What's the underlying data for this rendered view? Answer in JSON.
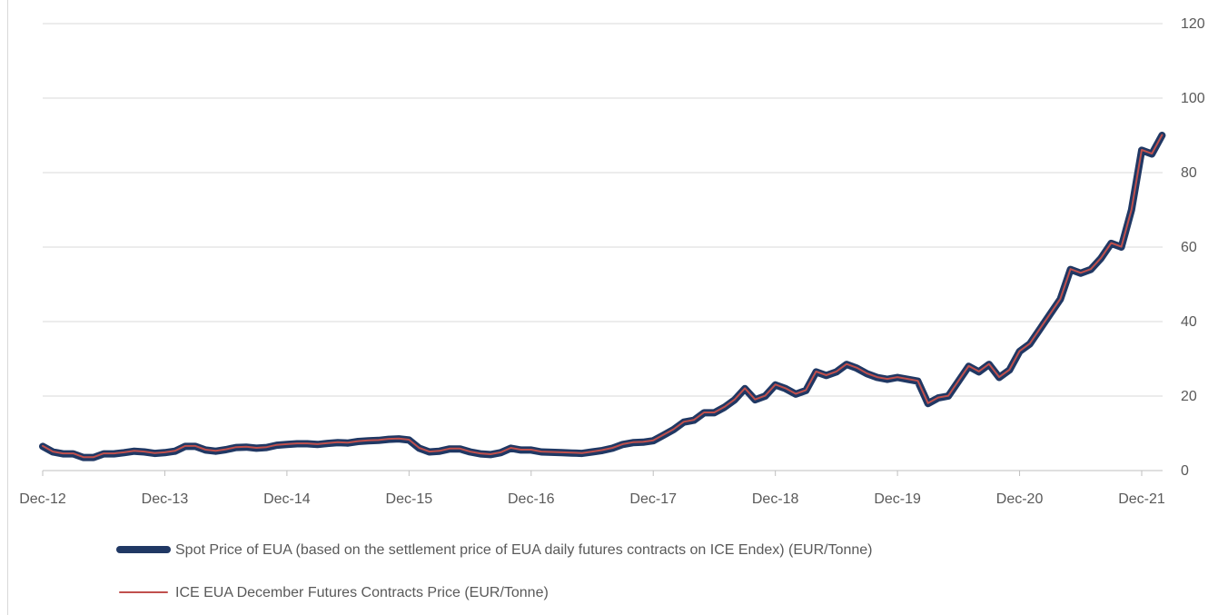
{
  "chart_data": {
    "type": "line",
    "x": [
      "2012-12",
      "2013-01",
      "2013-02",
      "2013-03",
      "2013-04",
      "2013-05",
      "2013-06",
      "2013-07",
      "2013-08",
      "2013-09",
      "2013-10",
      "2013-11",
      "2013-12",
      "2014-01",
      "2014-02",
      "2014-03",
      "2014-04",
      "2014-05",
      "2014-06",
      "2014-07",
      "2014-08",
      "2014-09",
      "2014-10",
      "2014-11",
      "2014-12",
      "2015-01",
      "2015-02",
      "2015-03",
      "2015-04",
      "2015-05",
      "2015-06",
      "2015-07",
      "2015-08",
      "2015-09",
      "2015-10",
      "2015-11",
      "2015-12",
      "2016-01",
      "2016-02",
      "2016-03",
      "2016-04",
      "2016-05",
      "2016-06",
      "2016-07",
      "2016-08",
      "2016-09",
      "2016-10",
      "2016-11",
      "2016-12",
      "2017-01",
      "2017-02",
      "2017-03",
      "2017-04",
      "2017-05",
      "2017-06",
      "2017-07",
      "2017-08",
      "2017-09",
      "2017-10",
      "2017-11",
      "2017-12",
      "2018-01",
      "2018-02",
      "2018-03",
      "2018-04",
      "2018-05",
      "2018-06",
      "2018-07",
      "2018-08",
      "2018-09",
      "2018-10",
      "2018-11",
      "2018-12",
      "2019-01",
      "2019-02",
      "2019-03",
      "2019-04",
      "2019-05",
      "2019-06",
      "2019-07",
      "2019-08",
      "2019-09",
      "2019-10",
      "2019-11",
      "2019-12",
      "2020-01",
      "2020-02",
      "2020-03",
      "2020-04",
      "2020-05",
      "2020-06",
      "2020-07",
      "2020-08",
      "2020-09",
      "2020-10",
      "2020-11",
      "2020-12",
      "2021-01",
      "2021-02",
      "2021-03",
      "2021-04",
      "2021-05",
      "2021-06",
      "2021-07",
      "2021-08",
      "2021-09",
      "2021-10",
      "2021-11",
      "2021-12",
      "2022-01",
      "2022-02"
    ],
    "series": [
      {
        "name": "Spot Price of EUA  (based on the settlement price of EUA daily futures contracts on ICE Endex) (EUR/Tonne)",
        "color": "#203864",
        "values": [
          6.5,
          5,
          4.5,
          4.5,
          3.5,
          3.5,
          4.5,
          4.5,
          4.8,
          5.2,
          5,
          4.6,
          4.8,
          5.2,
          6.5,
          6.5,
          5.5,
          5.2,
          5.6,
          6.2,
          6.3,
          6,
          6.2,
          6.8,
          7,
          7.2,
          7.2,
          7,
          7.3,
          7.5,
          7.4,
          7.8,
          8,
          8.1,
          8.4,
          8.5,
          8.2,
          6,
          5,
          5.2,
          5.8,
          5.8,
          5,
          4.5,
          4.3,
          4.8,
          6,
          5.5,
          5.5,
          5,
          4.9,
          4.8,
          4.7,
          4.6,
          5,
          5.4,
          6,
          7,
          7.5,
          7.6,
          8,
          9.5,
          11,
          13,
          13.5,
          15.5,
          15.5,
          17,
          19,
          22,
          19,
          20,
          23,
          22,
          20.5,
          21.5,
          26.5,
          25.5,
          26.5,
          28.5,
          27.5,
          26,
          25,
          24.5,
          25,
          24.5,
          24,
          18,
          19.5,
          20,
          24,
          28,
          26.5,
          28.5,
          25,
          27,
          32,
          34,
          38,
          42,
          46,
          54,
          53,
          54,
          57,
          61,
          60,
          70,
          86,
          85,
          90
        ]
      },
      {
        "name": "ICE EUA December Futures Contracts Price (EUR/Tonne)",
        "color": "#c0504d",
        "values": [
          6.6,
          5.1,
          4.6,
          4.6,
          3.6,
          3.6,
          4.6,
          4.6,
          4.9,
          5.3,
          5.1,
          4.7,
          4.9,
          5.3,
          6.6,
          6.6,
          5.6,
          5.3,
          5.7,
          6.3,
          6.4,
          6.1,
          6.3,
          6.9,
          7.1,
          7.3,
          7.3,
          7.1,
          7.4,
          7.6,
          7.5,
          7.9,
          8.1,
          8.2,
          8.5,
          8.6,
          8.3,
          6.1,
          5.1,
          5.3,
          5.9,
          5.9,
          5.1,
          4.6,
          4.4,
          4.9,
          6.1,
          5.6,
          5.6,
          5.1,
          5,
          4.9,
          4.8,
          4.7,
          5.1,
          5.5,
          6.1,
          7.1,
          7.6,
          7.7,
          8.1,
          9.6,
          11.1,
          13.1,
          13.6,
          15.6,
          15.6,
          17.1,
          19.1,
          22.1,
          19.1,
          20.1,
          23.1,
          22.1,
          20.6,
          21.6,
          26.6,
          25.6,
          26.6,
          28.6,
          27.6,
          26.1,
          25.1,
          24.6,
          25.1,
          24.6,
          24.1,
          18.1,
          19.6,
          20.1,
          24.1,
          28.1,
          26.6,
          28.6,
          25.1,
          27.1,
          32.1,
          34.1,
          38.1,
          42.1,
          46.1,
          54.1,
          53.1,
          54.1,
          57.1,
          61.1,
          60.1,
          70.1,
          86.1,
          85.1,
          90.1
        ]
      }
    ],
    "xticks": [
      {
        "value": "2012-12",
        "label": "Dec-12"
      },
      {
        "value": "2013-12",
        "label": "Dec-13"
      },
      {
        "value": "2014-12",
        "label": "Dec-14"
      },
      {
        "value": "2015-12",
        "label": "Dec-15"
      },
      {
        "value": "2016-12",
        "label": "Dec-16"
      },
      {
        "value": "2017-12",
        "label": "Dec-17"
      },
      {
        "value": "2018-12",
        "label": "Dec-18"
      },
      {
        "value": "2019-12",
        "label": "Dec-19"
      },
      {
        "value": "2020-12",
        "label": "Dec-20"
      },
      {
        "value": "2021-12",
        "label": "Dec-21"
      }
    ],
    "ylim": [
      0,
      120
    ],
    "yticks": [
      0,
      20,
      40,
      60,
      80,
      100,
      120
    ],
    "grid": true,
    "legend": "bottom"
  }
}
